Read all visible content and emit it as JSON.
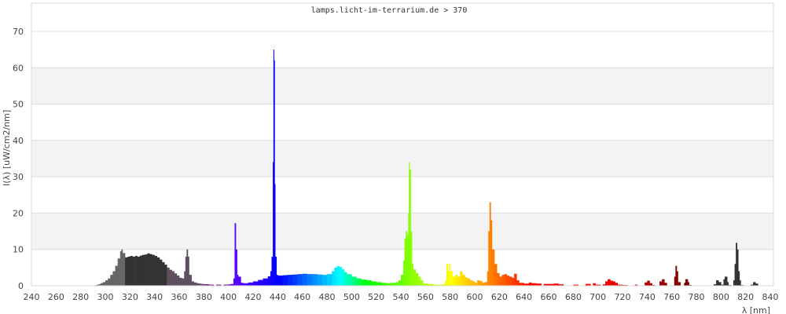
{
  "chart_data": {
    "type": "area",
    "title": "lamps.licht-im-terrarium.de > 370",
    "xlabel": "λ [nm]",
    "ylabel": "I(λ)  [uW/cm2/nm]",
    "xlim": [
      240,
      840
    ],
    "ylim": [
      0,
      70
    ],
    "xticks": [
      240,
      260,
      280,
      300,
      320,
      340,
      360,
      380,
      400,
      420,
      440,
      460,
      480,
      500,
      520,
      540,
      560,
      580,
      600,
      620,
      640,
      660,
      680,
      700,
      720,
      740,
      760,
      780,
      800,
      820,
      840
    ],
    "yticks": [
      0,
      10,
      20,
      30,
      40,
      50,
      60,
      70
    ],
    "grid": true,
    "shaded_bands": [
      [
        10,
        20
      ],
      [
        30,
        40
      ],
      [
        50,
        60
      ]
    ],
    "colors": {
      "band": "#f3f3f3",
      "grid": "#dddddd",
      "uvb": "#666666",
      "uva_core": "#333333",
      "uva_tail": "#5f4f5f",
      "violet_edge": "#6a0068",
      "infrared": "#333333"
    },
    "points": [
      [
        290,
        0.1
      ],
      [
        292,
        0.2
      ],
      [
        294,
        0.4
      ],
      [
        296,
        0.7
      ],
      [
        298,
        1
      ],
      [
        300,
        1.5
      ],
      [
        302,
        2
      ],
      [
        304,
        3
      ],
      [
        306,
        4
      ],
      [
        308,
        5.5
      ],
      [
        310,
        7.5
      ],
      [
        312,
        9.5
      ],
      [
        313,
        10
      ],
      [
        314,
        9
      ],
      [
        316,
        7.8
      ],
      [
        318,
        8
      ],
      [
        320,
        8.2
      ],
      [
        322,
        8
      ],
      [
        324,
        8.2
      ],
      [
        326,
        8
      ],
      [
        328,
        8.3
      ],
      [
        330,
        8.5
      ],
      [
        332,
        8.6
      ],
      [
        334,
        8.9
      ],
      [
        336,
        8.7
      ],
      [
        338,
        8.5
      ],
      [
        340,
        8.2
      ],
      [
        342,
        7.8
      ],
      [
        344,
        7.2
      ],
      [
        346,
        6.5
      ],
      [
        348,
        5.8
      ],
      [
        350,
        5
      ],
      [
        352,
        4.4
      ],
      [
        354,
        4
      ],
      [
        356,
        3.4
      ],
      [
        358,
        2.8
      ],
      [
        360,
        2.2
      ],
      [
        362,
        2
      ],
      [
        364,
        4
      ],
      [
        365,
        8
      ],
      [
        366,
        10
      ],
      [
        367,
        8
      ],
      [
        368,
        3
      ],
      [
        370,
        1.2
      ],
      [
        372,
        0.9
      ],
      [
        374,
        0.7
      ],
      [
        376,
        0.6
      ],
      [
        378,
        0.5
      ],
      [
        380,
        0.4
      ],
      [
        384,
        0.3
      ],
      [
        390,
        0.3
      ],
      [
        396,
        0.3
      ],
      [
        400,
        0.4
      ],
      [
        402,
        0.5
      ],
      [
        404,
        2
      ],
      [
        405,
        17.2
      ],
      [
        406,
        10
      ],
      [
        407,
        3
      ],
      [
        408,
        2.5
      ],
      [
        410,
        0.8
      ],
      [
        412,
        0.7
      ],
      [
        416,
        0.9
      ],
      [
        420,
        1.2
      ],
      [
        424,
        1.6
      ],
      [
        428,
        2
      ],
      [
        432,
        2.6
      ],
      [
        434,
        4
      ],
      [
        435,
        8
      ],
      [
        436,
        34
      ],
      [
        436.5,
        65
      ],
      [
        437,
        62
      ],
      [
        437.5,
        28
      ],
      [
        438,
        8
      ],
      [
        439,
        3
      ],
      [
        440,
        2.8
      ],
      [
        444,
        2.9
      ],
      [
        448,
        3
      ],
      [
        452,
        3.1
      ],
      [
        456,
        3.2
      ],
      [
        460,
        3.3
      ],
      [
        464,
        3.2
      ],
      [
        468,
        3.2
      ],
      [
        472,
        3.1
      ],
      [
        476,
        3
      ],
      [
        480,
        3.2
      ],
      [
        484,
        4
      ],
      [
        486,
        5
      ],
      [
        488,
        5.4
      ],
      [
        490,
        5.2
      ],
      [
        492,
        4.5
      ],
      [
        494,
        3.8
      ],
      [
        496,
        3.2
      ],
      [
        500,
        2.5
      ],
      [
        504,
        2
      ],
      [
        508,
        1.7
      ],
      [
        512,
        1.5
      ],
      [
        516,
        1.2
      ],
      [
        520,
        1
      ],
      [
        524,
        0.8
      ],
      [
        528,
        0.7
      ],
      [
        532,
        0.8
      ],
      [
        536,
        1
      ],
      [
        538,
        1.5
      ],
      [
        540,
        3
      ],
      [
        542,
        7
      ],
      [
        543,
        13
      ],
      [
        544,
        15
      ],
      [
        545,
        14
      ],
      [
        546,
        20
      ],
      [
        546.5,
        34
      ],
      [
        547,
        32
      ],
      [
        548,
        15
      ],
      [
        549,
        6
      ],
      [
        550,
        4.5
      ],
      [
        552,
        3.5
      ],
      [
        554,
        2.5
      ],
      [
        556,
        1.5
      ],
      [
        558,
        0.6
      ],
      [
        562,
        0.5
      ],
      [
        566,
        0.3
      ],
      [
        570,
        0.3
      ],
      [
        574,
        0.5
      ],
      [
        576,
        1.5
      ],
      [
        577,
        6
      ],
      [
        578,
        4
      ],
      [
        579,
        6
      ],
      [
        580,
        4
      ],
      [
        582,
        2.5
      ],
      [
        584,
        3
      ],
      [
        586,
        2.5
      ],
      [
        588,
        4
      ],
      [
        590,
        3
      ],
      [
        592,
        2.3
      ],
      [
        594,
        2
      ],
      [
        596,
        1.5
      ],
      [
        598,
        1.2
      ],
      [
        600,
        0.8
      ],
      [
        602,
        1.5
      ],
      [
        604,
        1.3
      ],
      [
        606,
        0.8
      ],
      [
        608,
        1
      ],
      [
        610,
        4
      ],
      [
        611,
        15
      ],
      [
        612,
        23
      ],
      [
        613,
        18
      ],
      [
        614,
        10
      ],
      [
        616,
        6
      ],
      [
        618,
        3.5
      ],
      [
        620,
        2.5
      ],
      [
        622,
        3
      ],
      [
        624,
        3.2
      ],
      [
        626,
        2.8
      ],
      [
        628,
        2.5
      ],
      [
        630,
        2.2
      ],
      [
        632,
        3.3
      ],
      [
        634,
        1.5
      ],
      [
        636,
        0.8
      ],
      [
        640,
        0.6
      ],
      [
        642,
        0.6
      ],
      [
        644,
        0.9
      ],
      [
        646,
        0.7
      ],
      [
        650,
        0.6
      ],
      [
        656,
        0.5
      ],
      [
        660,
        0.5
      ],
      [
        664,
        0.6
      ],
      [
        668,
        0.4
      ],
      [
        680,
        0.3
      ],
      [
        690,
        0.5
      ],
      [
        696,
        0.7
      ],
      [
        698,
        0.3
      ],
      [
        704,
        0.4
      ],
      [
        706,
        1.2
      ],
      [
        708,
        1.8
      ],
      [
        710,
        1.4
      ],
      [
        712,
        1.2
      ],
      [
        714,
        0.8
      ],
      [
        716,
        0.3
      ],
      [
        720,
        0.2
      ],
      [
        724,
        0.1
      ],
      [
        730,
        0.3
      ],
      [
        732,
        0
      ],
      [
        738,
        0.9
      ],
      [
        740,
        1.4
      ],
      [
        742,
        0.7
      ],
      [
        744,
        0.2
      ],
      [
        746,
        0
      ],
      [
        750,
        1.2
      ],
      [
        752,
        1.8
      ],
      [
        754,
        0.8
      ],
      [
        756,
        0.1
      ],
      [
        760,
        0
      ],
      [
        762,
        2.5
      ],
      [
        763,
        5.5
      ],
      [
        764,
        4
      ],
      [
        765,
        1
      ],
      [
        767,
        0
      ],
      [
        770,
        0.8
      ],
      [
        771,
        1.8
      ],
      [
        773,
        1
      ],
      [
        774,
        0.2
      ],
      [
        776,
        0
      ],
      [
        794,
        0.4
      ],
      [
        796,
        1.5
      ],
      [
        798,
        1
      ],
      [
        800,
        0.3
      ],
      [
        802,
        1.8
      ],
      [
        803,
        2.5
      ],
      [
        805,
        1
      ],
      [
        806,
        0.2
      ],
      [
        808,
        0
      ],
      [
        810,
        1.5
      ],
      [
        811,
        6
      ],
      [
        812,
        11.8
      ],
      [
        813,
        10
      ],
      [
        814,
        4
      ],
      [
        815,
        1.5
      ],
      [
        816,
        0.2
      ],
      [
        818,
        0
      ],
      [
        824,
        0.3
      ],
      [
        826,
        1
      ],
      [
        828,
        0.6
      ],
      [
        830,
        0
      ]
    ]
  }
}
